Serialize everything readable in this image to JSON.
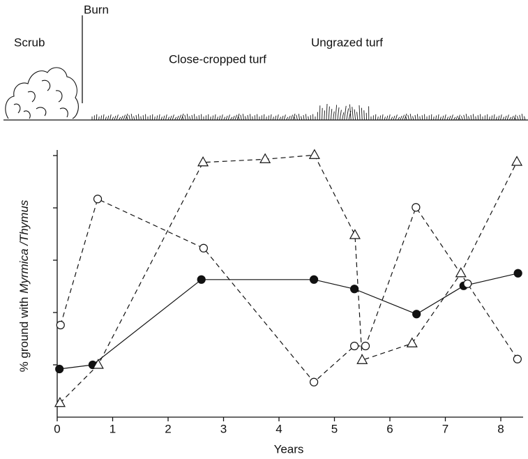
{
  "chart_data": {
    "type": "line",
    "illustration_labels": [
      "Scrub",
      "Burn",
      "Close-cropped turf",
      "Ungrazed turf"
    ],
    "xlabel": "Years",
    "ylabel_parts": [
      {
        "text": "% ground with"
      },
      {
        "text": "Myrmica /Thymus",
        "italic": true
      }
    ],
    "xlim": [
      0,
      8.4
    ],
    "xticks": [
      0,
      1,
      2,
      3,
      4,
      5,
      6,
      7,
      8
    ],
    "ylim": [
      0,
      5.1
    ],
    "yticks": [
      1,
      2,
      3,
      4,
      5
    ],
    "series": [
      {
        "color": "#111111",
        "marker": "filled-circle",
        "dashed": false,
        "x": [
          0.04,
          0.64,
          2.6,
          4.63,
          5.36,
          6.48,
          7.33,
          8.31
        ],
        "values": [
          0.92,
          1.0,
          2.63,
          2.63,
          2.45,
          1.97,
          2.51,
          2.75
        ]
      },
      {
        "color": "#111111",
        "marker": "open-circle",
        "dashed": true,
        "x": [
          0.06,
          0.73,
          2.64,
          4.63,
          5.36,
          5.56,
          6.47,
          7.4,
          8.3
        ],
        "values": [
          1.76,
          4.17,
          3.23,
          0.67,
          1.36,
          1.36,
          4.01,
          2.55,
          1.11
        ]
      },
      {
        "color": "#111111",
        "marker": "open-triangle",
        "dashed": true,
        "x": [
          0.05,
          0.74,
          2.63,
          3.75,
          4.64,
          5.37,
          5.5,
          6.4,
          7.28,
          8.29
        ],
        "values": [
          0.27,
          1.0,
          4.87,
          4.93,
          5.01,
          3.48,
          1.09,
          1.41,
          2.75,
          4.88
        ]
      }
    ]
  }
}
